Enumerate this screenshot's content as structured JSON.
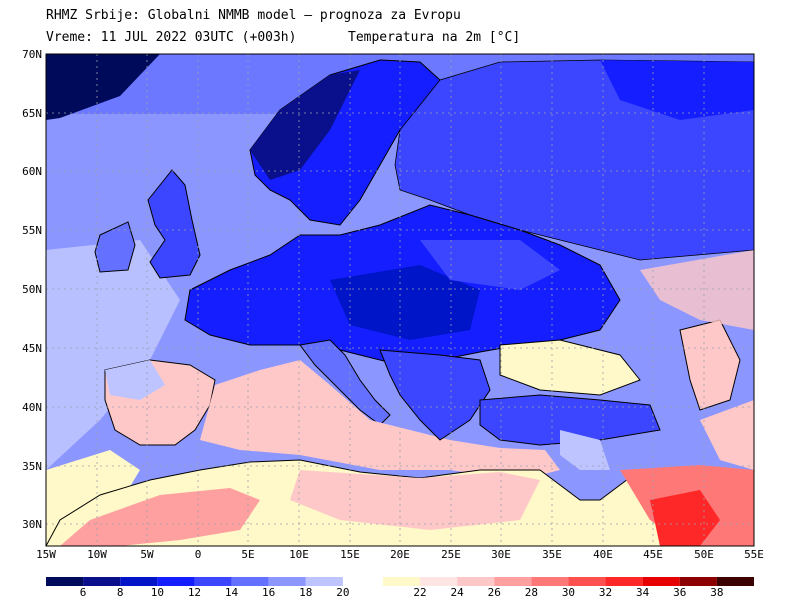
{
  "header": {
    "line1": "RHMZ Srbije: Globalni NMMB model — prognoza za Evropu",
    "line2_left": "Vreme: 11 JUL 2022 03UTC (+003h)",
    "line2_right": "Temperatura na 2m [°C]"
  },
  "axes": {
    "lat_labels": [
      "70N",
      "65N",
      "60N",
      "55N",
      "50N",
      "45N",
      "40N",
      "35N",
      "30N"
    ],
    "lon_labels": [
      "15W",
      "10W",
      "5W",
      "0",
      "5E",
      "10E",
      "15E",
      "20E",
      "25E",
      "30E",
      "35E",
      "40E",
      "45E",
      "50E",
      "55E"
    ]
  },
  "colorbar": {
    "labels": [
      "6",
      "8",
      "10",
      "12",
      "14",
      "16",
      "18",
      "20",
      "22",
      "24",
      "26",
      "28",
      "30",
      "32",
      "34",
      "36",
      "38"
    ],
    "colors": [
      "#000a5a",
      "#0a0f8c",
      "#0014c8",
      "#141eff",
      "#3c46ff",
      "#6470ff",
      "#8c96ff",
      "#bec4ff",
      "#fff8c8",
      "#ffe4e4",
      "#ffc8c8",
      "#ffa0a0",
      "#ff7878",
      "#ff5050",
      "#ff2828",
      "#e60000",
      "#8c0000",
      "#3c0000"
    ]
  },
  "colors": {
    "ocean_atlantic": "#8c96ff",
    "land_cool": "#3c46ff",
    "land_warm": "#ffc8c8",
    "mediterranean": "#ffc8c8",
    "coastline": "#000000",
    "grid": "#9aa0aa"
  }
}
